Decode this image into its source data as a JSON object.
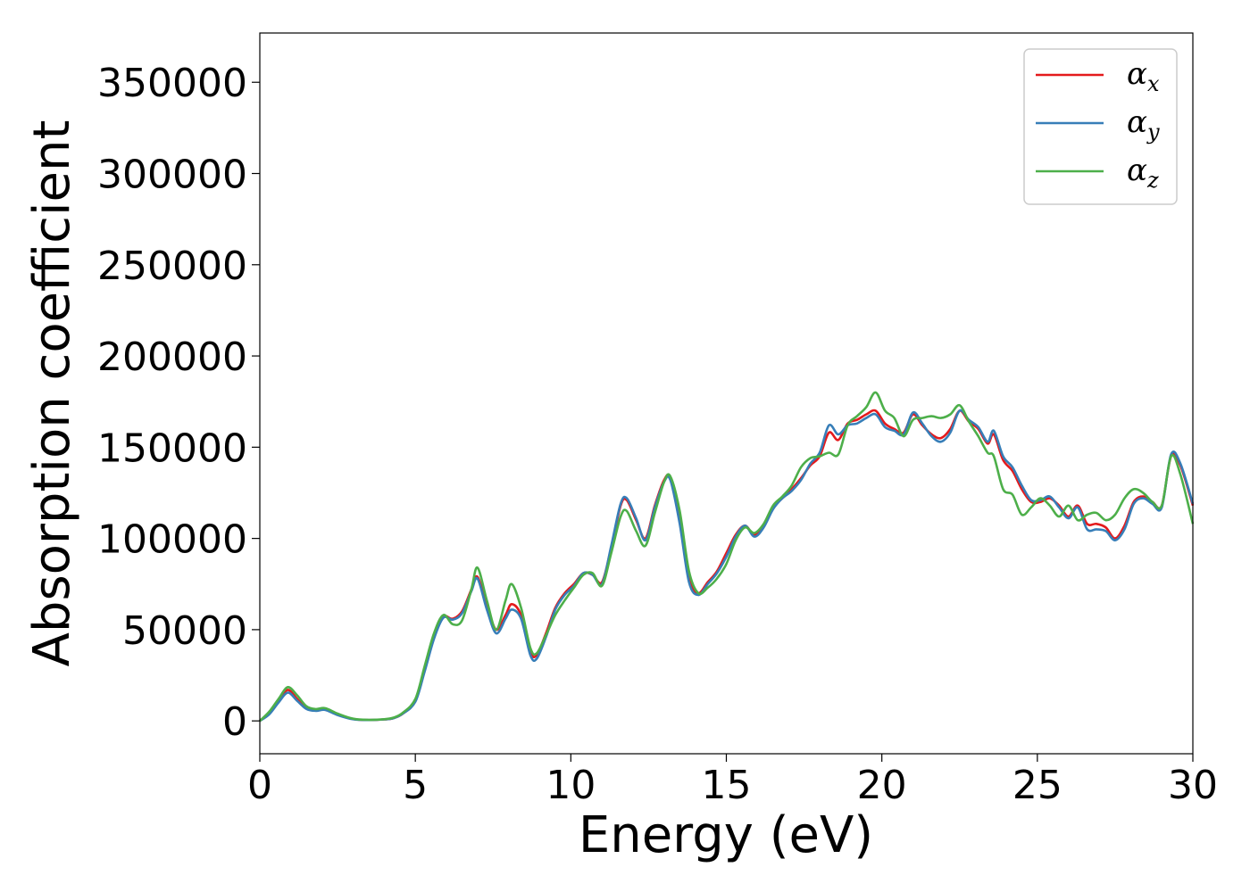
{
  "chart_data": {
    "type": "line",
    "xlabel": "Energy (eV)",
    "ylabel": "Absorption coefficient",
    "xlim": [
      0,
      30
    ],
    "ylim": [
      -18000,
      377000
    ],
    "xticks": [
      0,
      5,
      10,
      15,
      20,
      25,
      30
    ],
    "yticks": [
      0,
      50000,
      100000,
      150000,
      200000,
      250000,
      300000,
      350000
    ],
    "grid": false,
    "legend_position": "top-right",
    "series": [
      {
        "name": "αx",
        "symbol": "α",
        "subscript": "x",
        "color": "#e41a1c",
        "x": [
          0,
          0.3,
          0.6,
          0.9,
          1.2,
          1.5,
          1.8,
          2.1,
          2.5,
          3,
          3.5,
          4,
          4.3,
          4.6,
          5,
          5.3,
          5.6,
          5.9,
          6.2,
          6.5,
          6.8,
          7,
          7.3,
          7.6,
          7.9,
          8.1,
          8.4,
          8.7,
          8.9,
          9.2,
          9.5,
          9.8,
          10.1,
          10.4,
          10.7,
          11,
          11.3,
          11.6,
          11.8,
          12.1,
          12.4,
          12.7,
          13,
          13.2,
          13.5,
          13.8,
          14.1,
          14.4,
          14.7,
          15,
          15.3,
          15.6,
          15.9,
          16.2,
          16.5,
          16.8,
          17.1,
          17.4,
          17.7,
          18,
          18.3,
          18.6,
          18.9,
          19.2,
          19.5,
          19.8,
          20.1,
          20.4,
          20.7,
          21,
          21.3,
          21.6,
          21.9,
          22.2,
          22.5,
          22.8,
          23.1,
          23.4,
          23.6,
          23.9,
          24.2,
          24.5,
          24.8,
          25.1,
          25.4,
          25.7,
          26,
          26.3,
          26.6,
          26.9,
          27.2,
          27.5,
          27.8,
          28.1,
          28.4,
          28.7,
          29,
          29.3,
          29.6,
          30
        ],
        "y": [
          0,
          4000,
          11000,
          17000,
          12000,
          7000,
          6000,
          6500,
          3500,
          1000,
          500,
          800,
          1500,
          4000,
          11000,
          28000,
          46000,
          57000,
          56000,
          60000,
          72000,
          79000,
          63000,
          50000,
          58000,
          64000,
          58000,
          38000,
          36000,
          48000,
          62000,
          70000,
          75000,
          81000,
          80000,
          76000,
          95000,
          118000,
          121000,
          110000,
          100000,
          118000,
          132000,
          133000,
          110000,
          78000,
          70000,
          76000,
          82000,
          92000,
          102000,
          107000,
          102000,
          107000,
          117000,
          122000,
          127000,
          133000,
          140000,
          145000,
          158000,
          154000,
          163000,
          165000,
          168000,
          170000,
          163000,
          160000,
          158000,
          168000,
          162000,
          157000,
          155000,
          160000,
          170000,
          164000,
          160000,
          152000,
          157000,
          143000,
          137000,
          127000,
          120000,
          120000,
          122000,
          118000,
          112000,
          118000,
          108000,
          108000,
          106000,
          100000,
          107000,
          120000,
          123000,
          120000,
          118000,
          145000,
          140000,
          118000
        ]
      },
      {
        "name": "αy",
        "symbol": "α",
        "subscript": "y",
        "color": "#377eb8",
        "x": [
          0,
          0.3,
          0.6,
          0.9,
          1.2,
          1.5,
          1.8,
          2.1,
          2.5,
          3,
          3.5,
          4,
          4.3,
          4.6,
          5,
          5.3,
          5.6,
          5.9,
          6.2,
          6.5,
          6.8,
          7,
          7.3,
          7.6,
          7.9,
          8.1,
          8.4,
          8.7,
          8.9,
          9.2,
          9.5,
          9.8,
          10.1,
          10.4,
          10.7,
          11,
          11.3,
          11.6,
          11.8,
          12.1,
          12.4,
          12.7,
          13,
          13.2,
          13.5,
          13.8,
          14.1,
          14.4,
          14.7,
          15,
          15.3,
          15.6,
          15.9,
          16.2,
          16.5,
          16.8,
          17.1,
          17.4,
          17.7,
          18,
          18.3,
          18.6,
          18.9,
          19.2,
          19.5,
          19.8,
          20.1,
          20.4,
          20.7,
          21,
          21.3,
          21.6,
          21.9,
          22.2,
          22.5,
          22.8,
          23.1,
          23.4,
          23.6,
          23.9,
          24.2,
          24.5,
          24.8,
          25.1,
          25.4,
          25.7,
          26,
          26.3,
          26.6,
          26.9,
          27.2,
          27.5,
          27.8,
          28.1,
          28.4,
          28.7,
          29,
          29.3,
          29.6,
          30
        ],
        "y": [
          0,
          3500,
          10000,
          15500,
          11000,
          6500,
          5500,
          6000,
          3200,
          900,
          500,
          800,
          1500,
          4000,
          10500,
          27000,
          45000,
          56500,
          55500,
          59000,
          71000,
          78000,
          61000,
          48000,
          56000,
          61000,
          56000,
          36000,
          34000,
          46000,
          61000,
          69000,
          74000,
          81000,
          80000,
          75000,
          96000,
          119000,
          122000,
          111000,
          99000,
          117000,
          131000,
          132000,
          108000,
          76000,
          69000,
          75000,
          81000,
          90000,
          101000,
          107000,
          101000,
          106000,
          116000,
          122000,
          126000,
          132000,
          141000,
          147000,
          162000,
          157000,
          162000,
          163000,
          166000,
          168000,
          161000,
          159000,
          157000,
          169000,
          163000,
          156000,
          153000,
          158000,
          170000,
          165000,
          161000,
          153000,
          159000,
          145000,
          139000,
          129000,
          121000,
          121000,
          123000,
          117000,
          111000,
          117000,
          105000,
          105000,
          104000,
          99000,
          105000,
          119000,
          122000,
          119000,
          117000,
          146000,
          141000,
          119000
        ]
      },
      {
        "name": "αz",
        "symbol": "α",
        "subscript": "z",
        "color": "#4daf4a",
        "x": [
          0,
          0.3,
          0.6,
          0.9,
          1.2,
          1.5,
          1.8,
          2.1,
          2.5,
          3,
          3.5,
          4,
          4.3,
          4.6,
          5,
          5.3,
          5.6,
          5.9,
          6.2,
          6.5,
          6.8,
          7,
          7.3,
          7.6,
          7.9,
          8.1,
          8.4,
          8.7,
          8.9,
          9.2,
          9.5,
          9.8,
          10.1,
          10.4,
          10.7,
          11,
          11.3,
          11.6,
          11.8,
          12.1,
          12.4,
          12.7,
          13,
          13.2,
          13.5,
          13.8,
          14.1,
          14.4,
          14.7,
          15,
          15.3,
          15.6,
          15.9,
          16.2,
          16.5,
          16.8,
          17.1,
          17.4,
          17.7,
          18,
          18.3,
          18.6,
          18.9,
          19.2,
          19.5,
          19.8,
          20.1,
          20.4,
          20.7,
          21,
          21.3,
          21.6,
          21.9,
          22.2,
          22.5,
          22.8,
          23.1,
          23.4,
          23.6,
          23.9,
          24.2,
          24.5,
          24.8,
          25.1,
          25.4,
          25.7,
          26,
          26.3,
          26.6,
          26.9,
          27.2,
          27.5,
          27.8,
          28.1,
          28.4,
          28.7,
          29,
          29.3,
          29.6,
          30
        ],
        "y": [
          0,
          5000,
          12000,
          18500,
          14000,
          8000,
          6500,
          7000,
          4000,
          1200,
          600,
          900,
          1800,
          4500,
          12000,
          30000,
          48000,
          58000,
          53000,
          55000,
          72000,
          84000,
          66000,
          50000,
          66000,
          75000,
          62000,
          40000,
          37000,
          47000,
          58000,
          66000,
          73000,
          80000,
          81000,
          74000,
          92000,
          112000,
          115000,
          104000,
          96000,
          114000,
          131000,
          134000,
          115000,
          82000,
          70000,
          73000,
          78000,
          86000,
          99000,
          106000,
          103000,
          108000,
          118000,
          123000,
          129000,
          139000,
          144000,
          145000,
          147000,
          146000,
          162000,
          167000,
          172000,
          180000,
          170000,
          166000,
          156000,
          165000,
          166000,
          167000,
          166000,
          168000,
          173000,
          164000,
          156000,
          147000,
          145000,
          127000,
          124000,
          113000,
          117000,
          122000,
          118000,
          112000,
          118000,
          110000,
          113000,
          114000,
          110000,
          113000,
          122000,
          127000,
          125000,
          120000,
          118000,
          145000,
          135000,
          108000
        ]
      }
    ]
  }
}
